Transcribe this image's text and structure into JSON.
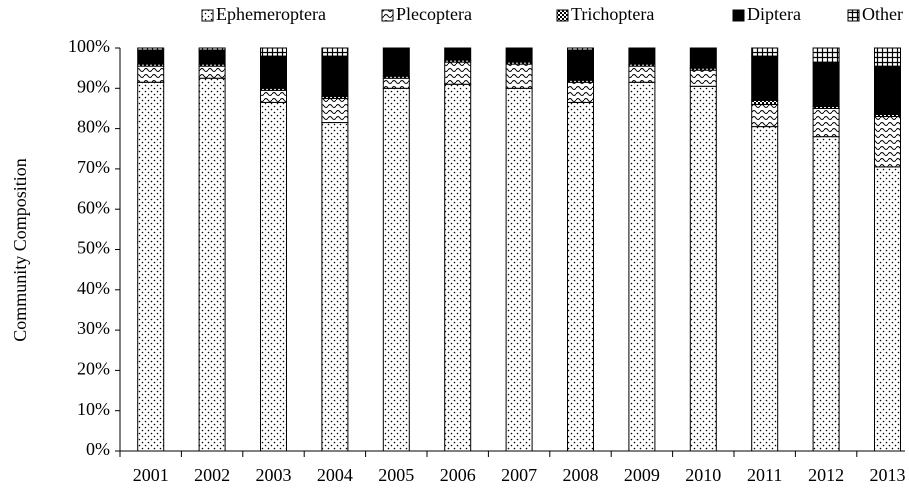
{
  "chart_data": {
    "type": "stacked_bar",
    "y_label": "Community Composition",
    "categories": [
      "2001",
      "2002",
      "2003",
      "2004",
      "2005",
      "2006",
      "2007",
      "2008",
      "2009",
      "2010",
      "2011",
      "2012",
      "2013"
    ],
    "series": [
      {
        "name": "Ephemeroptera",
        "color": "#000000",
        "pattern": "dots",
        "values": [
          91.5,
          92.5,
          86.5,
          81.5,
          90,
          91,
          90,
          86.5,
          91.5,
          90.5,
          80.5,
          78,
          70.5
        ]
      },
      {
        "name": "Plecoptera",
        "color": "#000000",
        "pattern": "waves",
        "values": [
          4,
          3,
          3,
          6,
          2.5,
          5.5,
          6,
          5,
          4,
          4,
          5.5,
          7,
          12.5
        ]
      },
      {
        "name": "Trichoptera",
        "color": "#000000",
        "pattern": "checks",
        "values": [
          0.5,
          0.5,
          0.5,
          0.5,
          0.5,
          0.5,
          0.5,
          0.5,
          0.5,
          0.5,
          1,
          0.5,
          0.5
        ]
      },
      {
        "name": "Diptera",
        "color": "#000000",
        "pattern": "solid",
        "values": [
          3.5,
          3.5,
          8,
          10,
          7,
          3,
          3.5,
          7.5,
          4,
          5,
          11,
          11,
          12
        ]
      },
      {
        "name": "Other",
        "color": "#000000",
        "pattern": "grid",
        "values": [
          0.5,
          0.5,
          2,
          2,
          0,
          0,
          0,
          0.5,
          0,
          0,
          2,
          3.5,
          4.5
        ]
      }
    ],
    "ylim": [
      0,
      100
    ],
    "yticks": [
      {
        "value": 0,
        "label": "0%"
      },
      {
        "value": 10,
        "label": "10%"
      },
      {
        "value": 20,
        "label": "20%"
      },
      {
        "value": 30,
        "label": "30%"
      },
      {
        "value": 40,
        "label": "40%"
      },
      {
        "value": 50,
        "label": "50%"
      },
      {
        "value": 60,
        "label": "60%"
      },
      {
        "value": 70,
        "label": "70%"
      },
      {
        "value": 80,
        "label": "80%"
      },
      {
        "value": 90,
        "label": "90%"
      },
      {
        "value": 100,
        "label": "100%"
      }
    ],
    "grid": false,
    "legend": "top"
  }
}
